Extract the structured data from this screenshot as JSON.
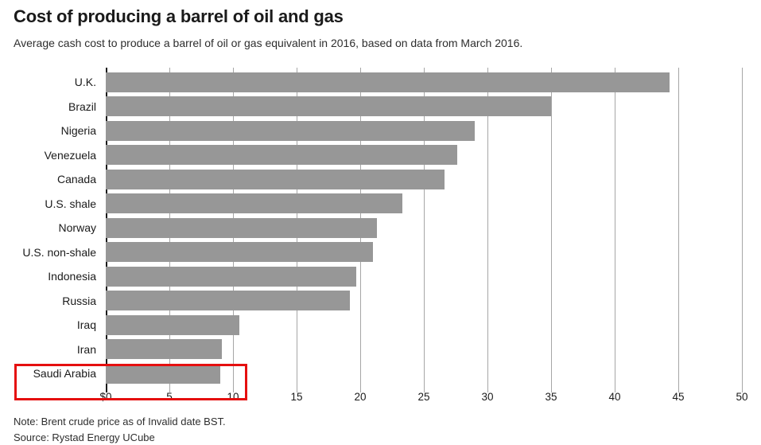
{
  "header": {
    "title": "Cost of producing a barrel of oil and gas",
    "subtitle": "Average cash cost to produce a barrel of oil or gas equivalent in 2016, based on data from March 2016."
  },
  "chart_data": {
    "type": "bar",
    "orientation": "horizontal",
    "title": "Cost of producing a barrel of oil and gas",
    "xlabel": "",
    "ylabel": "",
    "categories": [
      "U.K.",
      "Brazil",
      "Nigeria",
      "Venezuela",
      "Canada",
      "U.S. shale",
      "Norway",
      "U.S. non-shale",
      "Indonesia",
      "Russia",
      "Iraq",
      "Iran",
      "Saudi Arabia"
    ],
    "values": [
      44.3,
      35.0,
      29.0,
      27.6,
      26.6,
      23.3,
      21.3,
      21.0,
      19.7,
      19.2,
      10.5,
      9.1,
      9.0
    ],
    "unit": "$ per barrel",
    "xlim": [
      0,
      50
    ],
    "x_ticks": [
      "$0",
      "5",
      "10",
      "15",
      "20",
      "25",
      "30",
      "35",
      "40",
      "45",
      "50"
    ],
    "x_tick_values": [
      0,
      5,
      10,
      15,
      20,
      25,
      30,
      35,
      40,
      45,
      50
    ],
    "grid": true,
    "legend": "none",
    "bar_color": "#979797",
    "gridline_color": "#a6a6a6",
    "axis_color": "#1a1a1a"
  },
  "highlight": {
    "target": "Saudi Arabia",
    "color": "#e50f0f"
  },
  "footer": {
    "note": "Note: Brent crude price as of Invalid date BST.",
    "source": "Source: Rystad Energy UCube"
  }
}
